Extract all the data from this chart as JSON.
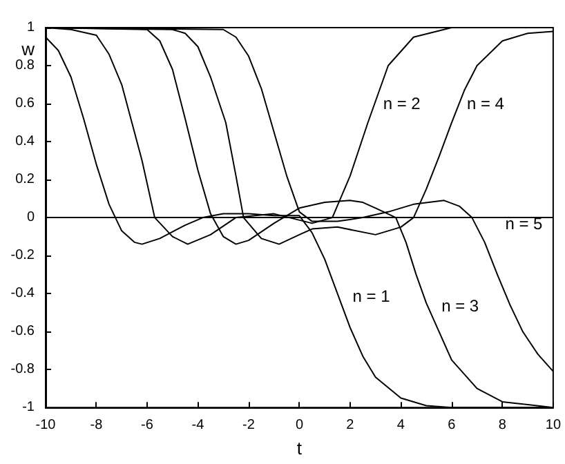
{
  "chart_data": {
    "type": "line",
    "xlabel": "t",
    "ylabel": "w",
    "xlim": [
      -10,
      10
    ],
    "xticks": [
      -10,
      -8,
      -6,
      -4,
      -2,
      0,
      2,
      4,
      6,
      8,
      10
    ],
    "ylim": [
      -1,
      1
    ],
    "yticks": [
      -1,
      -0.8,
      -0.6,
      -0.4,
      -0.2,
      0,
      0.2,
      0.4,
      0.6,
      0.8,
      1
    ],
    "grid": false,
    "marker": "none",
    "line_style": "solid",
    "ref_lines": [
      {
        "axis": "y",
        "value": 0,
        "color": "#000000"
      }
    ],
    "series": [
      {
        "name": "n = 1",
        "color": "#000000",
        "x": [
          -10,
          -9.5,
          -9,
          -8.5,
          -8,
          -7.5,
          -7,
          -6.5,
          -6.2,
          -5.5,
          -4.5,
          -3.8,
          -3,
          -2,
          -1,
          0,
          0.5,
          1,
          1.5,
          2,
          2.5,
          3,
          4,
          5,
          6,
          10
        ],
        "values": [
          0.95,
          0.88,
          0.74,
          0.52,
          0.28,
          0.07,
          -0.07,
          -0.13,
          -0.14,
          -0.11,
          -0.04,
          0,
          0.02,
          0.02,
          0.01,
          0.01,
          -0.08,
          -0.22,
          -0.4,
          -0.58,
          -0.73,
          -0.84,
          -0.95,
          -0.99,
          -1,
          -1
        ]
      },
      {
        "name": "n = 2",
        "color": "#000000",
        "x": [
          -10,
          -9,
          -8,
          -7.5,
          -7,
          -6.6,
          -6.2,
          -5.7,
          -5,
          -4.4,
          -3.5,
          -2.5,
          -1,
          0.5,
          1.3,
          2,
          2.7,
          3.5,
          4.5,
          6,
          10
        ],
        "values": [
          1,
          0.99,
          0.96,
          0.86,
          0.7,
          0.5,
          0.3,
          0,
          -0.1,
          -0.14,
          -0.09,
          0,
          0.02,
          -0.03,
          0,
          0.22,
          0.5,
          0.8,
          0.95,
          1,
          1
        ]
      },
      {
        "name": "n = 3",
        "color": "#000000",
        "x": [
          -10,
          -6,
          -5.5,
          -5,
          -4.5,
          -4,
          -3.5,
          -3,
          -2.5,
          -2,
          -1,
          0,
          1,
          2,
          2.5,
          3,
          3.8,
          4.2,
          4.6,
          5,
          5.5,
          6,
          7,
          8,
          10
        ],
        "values": [
          1,
          0.99,
          0.93,
          0.78,
          0.52,
          0.25,
          0.02,
          -0.1,
          -0.14,
          -0.12,
          -0.03,
          0.05,
          0.08,
          0.09,
          0.08,
          0.05,
          0,
          -0.13,
          -0.3,
          -0.45,
          -0.6,
          -0.75,
          -0.9,
          -0.97,
          -1
        ]
      },
      {
        "name": "n = 4",
        "color": "#000000",
        "x": [
          -10,
          -5,
          -4.5,
          -4,
          -3.5,
          -2.9,
          -2.5,
          -2.2,
          -1.5,
          -0.8,
          0,
          0.5,
          1.5,
          3,
          4,
          4.5,
          5,
          5.5,
          6,
          6.5,
          7,
          8,
          9,
          10
        ],
        "values": [
          1,
          0.99,
          0.97,
          0.9,
          0.74,
          0.5,
          0.22,
          0,
          -0.11,
          -0.14,
          -0.09,
          -0.06,
          -0.05,
          -0.09,
          -0.05,
          0,
          0.15,
          0.32,
          0.5,
          0.67,
          0.8,
          0.93,
          0.97,
          0.98
        ]
      },
      {
        "name": "n = 5",
        "color": "#000000",
        "x": [
          -10,
          -3,
          -2.5,
          -2,
          -1.5,
          -1,
          -0.5,
          0,
          0.5,
          1.5,
          2.5,
          3.5,
          4.5,
          5.7,
          6.3,
          6.8,
          7.3,
          7.8,
          8.3,
          8.8,
          9.4,
          10
        ],
        "values": [
          1,
          0.99,
          0.95,
          0.85,
          0.68,
          0.45,
          0.22,
          0.03,
          -0.02,
          -0.02,
          0,
          0.03,
          0.07,
          0.09,
          0.06,
          0,
          -0.13,
          -0.3,
          -0.46,
          -0.6,
          -0.72,
          -0.81
        ]
      }
    ]
  }
}
